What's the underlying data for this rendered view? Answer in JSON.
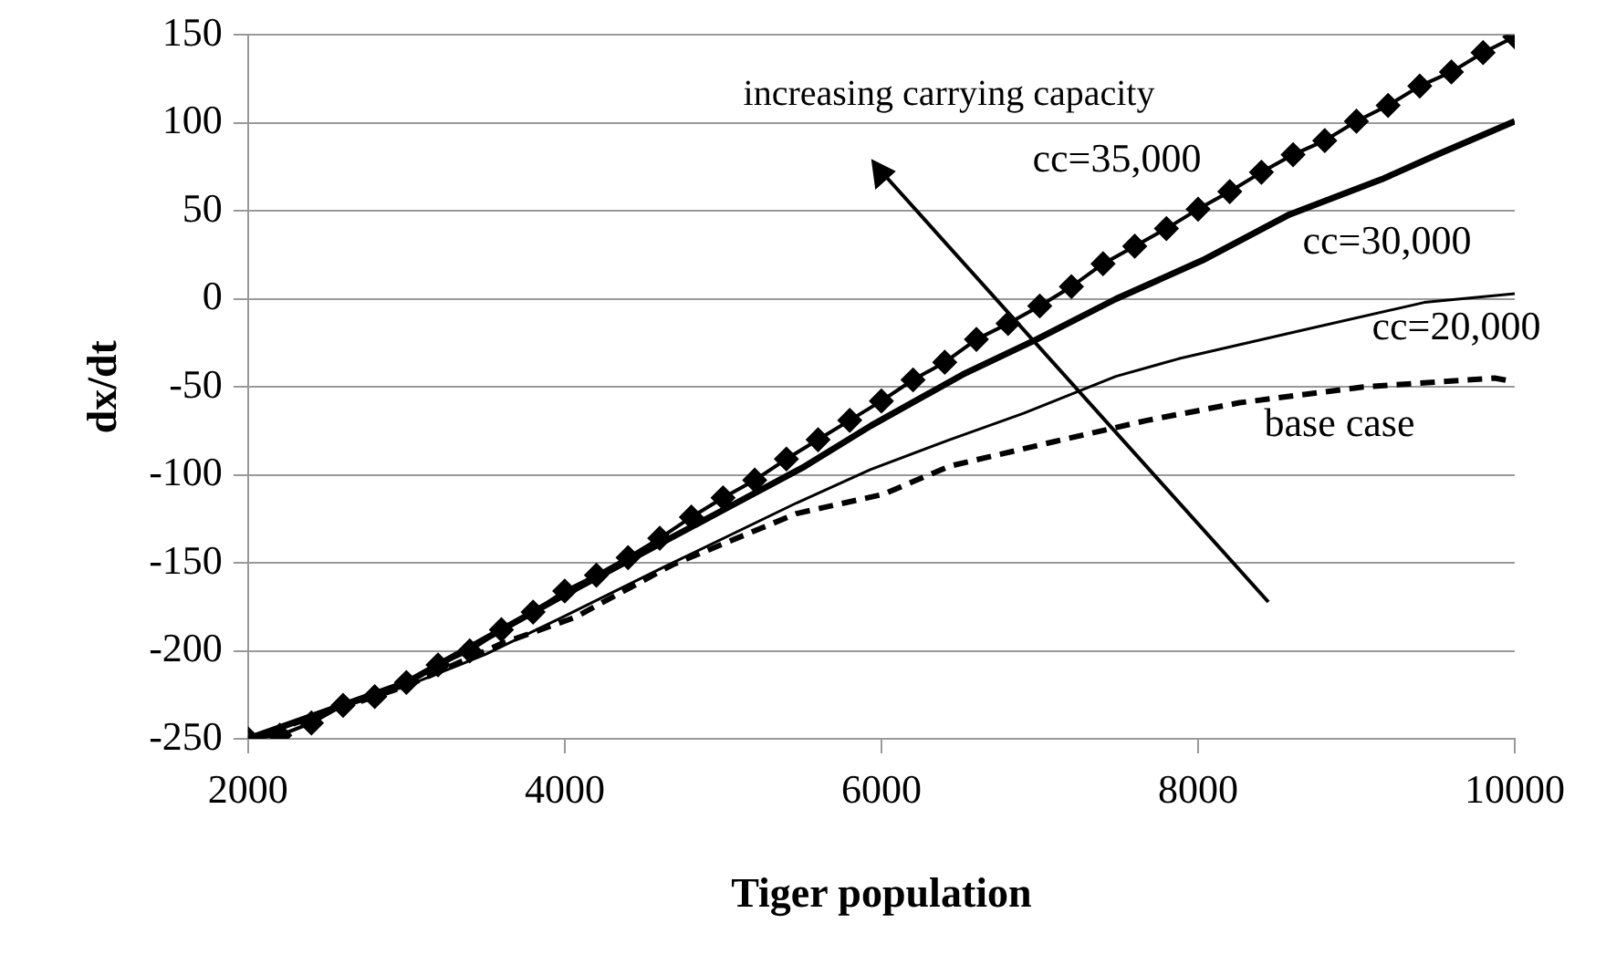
{
  "chart_data": {
    "type": "line",
    "xlabel": "Tiger population",
    "ylabel": "dx/dt",
    "xlim": [
      2000,
      10000
    ],
    "ylim": [
      -250,
      150
    ],
    "xticks": [
      2000,
      4000,
      6000,
      8000,
      10000
    ],
    "yticks": [
      -250,
      -200,
      -150,
      -100,
      -50,
      0,
      50,
      100,
      150
    ],
    "grid": "y",
    "legend": false,
    "annotations": [
      "increasing carrying capacity"
    ],
    "series": [
      {
        "name": "cc=35,000",
        "color": "#000000",
        "marker": "diamond",
        "line_style": "solid",
        "x": [
          2000,
          2200,
          2400,
          2600,
          2800,
          3000,
          3200,
          3400,
          3600,
          3800,
          4000,
          4200,
          4400,
          4600,
          4800,
          5000,
          5200,
          5400,
          5600,
          5800,
          6000,
          6200,
          6400,
          6600,
          6800,
          7000,
          7200,
          7400,
          7600,
          7800,
          8000,
          8200,
          8400,
          8600,
          8800,
          9000,
          9200,
          9400,
          9600,
          9800,
          10000
        ],
        "values": [
          -250,
          -248,
          -241,
          -231,
          -226,
          -218,
          -208,
          -200,
          -188,
          -178,
          -166,
          -157,
          -147,
          -136,
          -124,
          -113,
          -103,
          -91,
          -80,
          -69,
          -58,
          -46,
          -36,
          -23,
          -14,
          -4,
          7,
          20,
          30,
          40,
          51,
          61,
          72,
          82,
          90,
          101,
          110,
          121,
          129,
          140,
          149
        ]
      },
      {
        "name": "cc=30,000",
        "color": "#000000",
        "marker": "none",
        "line_style": "solid",
        "x": [
          2000,
          3000,
          4000,
          5000,
          5500,
          5935,
          6513,
          6980,
          7481,
          8029,
          8577,
          9160,
          9510,
          10000
        ],
        "values": [
          -250,
          -218,
          -168,
          -120,
          -96,
          -72,
          -43,
          -23,
          0,
          22,
          48,
          68,
          82,
          101
        ]
      },
      {
        "name": "cc=20,000",
        "color": "#000000",
        "marker": "none",
        "line_style": "solid",
        "x": [
          2000,
          3000,
          3500,
          3983,
          4612,
          5463,
          5930,
          6431,
          6898,
          7481,
          7877,
          8647,
          9428,
          10000
        ],
        "values": [
          -250,
          -220,
          -202,
          -181,
          -153,
          -116,
          -97,
          -80,
          -65,
          -44,
          -34,
          -18,
          -2,
          3
        ]
      },
      {
        "name": "base case",
        "color": "#000000",
        "marker": "none",
        "line_style": "dashed",
        "x": [
          2000,
          3000,
          3598,
          4064,
          4683,
          5463,
          6012,
          6431,
          7096,
          7679,
          8262,
          9044,
          9872,
          10000
        ],
        "values": [
          -250,
          -220,
          -196,
          -181,
          -151,
          -122,
          -111,
          -95,
          -81,
          -69,
          -59,
          -50,
          -45,
          -47
        ]
      }
    ]
  }
}
